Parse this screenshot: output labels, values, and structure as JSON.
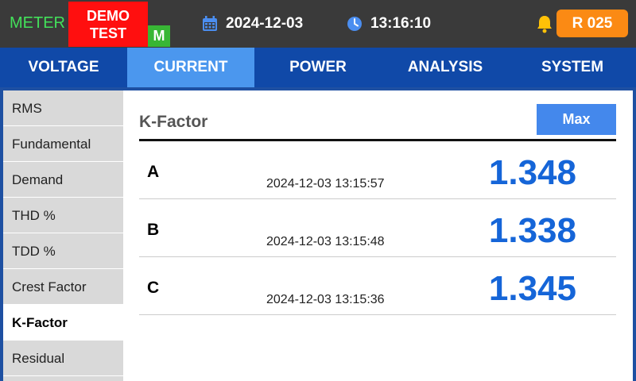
{
  "status_bar": {
    "meter_label": "METER",
    "demo_line1": "DEMO",
    "demo_line2": "TEST",
    "mode_badge": "M",
    "date": "2024-12-03",
    "time": "13:16:10",
    "relay_badge": "R 025",
    "colors": {
      "meter": "#43e05a",
      "demo": "#ff0f0f",
      "mode": "#38b635",
      "relay": "#fb8a14"
    }
  },
  "tabs": [
    {
      "label": "VOLTAGE",
      "active": false
    },
    {
      "label": "CURRENT",
      "active": true
    },
    {
      "label": "POWER",
      "active": false
    },
    {
      "label": "ANALYSIS",
      "active": false
    },
    {
      "label": "SYSTEM",
      "active": false
    }
  ],
  "sidebar": {
    "items": [
      {
        "label": "RMS",
        "active": false
      },
      {
        "label": "Fundamental",
        "active": false
      },
      {
        "label": "Demand",
        "active": false
      },
      {
        "label": "THD %",
        "active": false
      },
      {
        "label": "TDD %",
        "active": false
      },
      {
        "label": "Crest Factor",
        "active": false
      },
      {
        "label": "K-Factor",
        "active": true
      },
      {
        "label": "Residual",
        "active": false
      }
    ]
  },
  "panel": {
    "title": "K-Factor",
    "max_button": "Max",
    "rows": [
      {
        "phase": "A",
        "timestamp": "2024-12-03 13:15:57",
        "value": "1.348"
      },
      {
        "phase": "B",
        "timestamp": "2024-12-03 13:15:48",
        "value": "1.338"
      },
      {
        "phase": "C",
        "timestamp": "2024-12-03 13:15:36",
        "value": "1.345"
      }
    ],
    "value_color": "#1565d8"
  },
  "icons": {
    "calendar": "calendar-icon",
    "clock": "clock-icon",
    "bell": "bell-icon"
  }
}
